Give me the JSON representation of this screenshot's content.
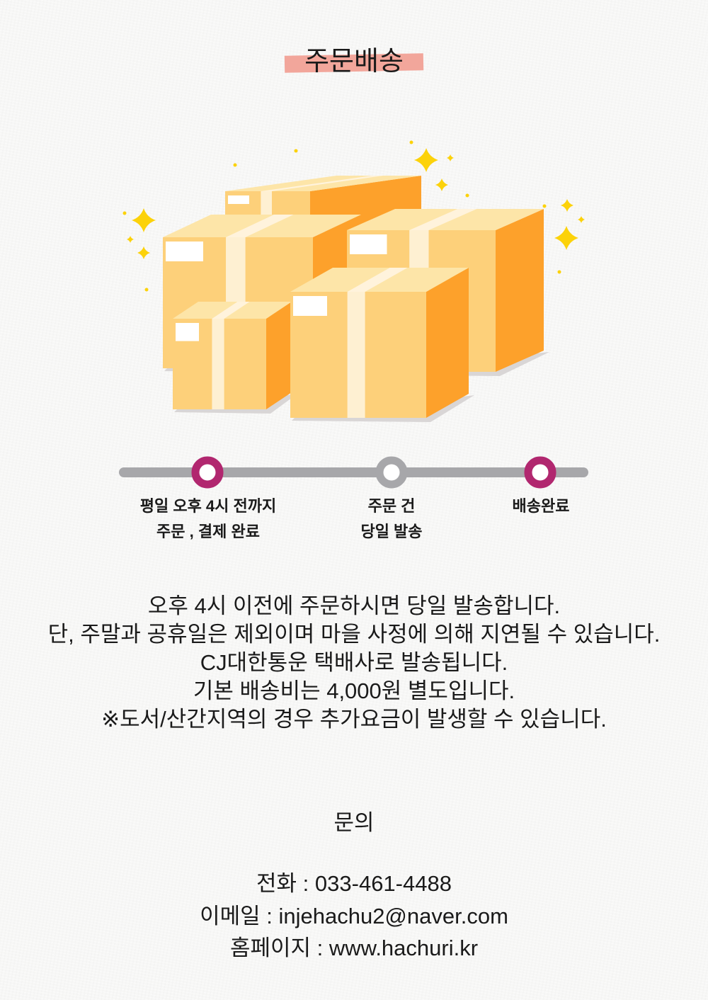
{
  "title": "주문배송",
  "colors": {
    "accent": "#b1276f",
    "track": "#a7a7aa",
    "title_highlight": "#f2a69b",
    "box_front": "#fdd07a",
    "box_side": "#fda12b",
    "box_top": "#fde5a8"
  },
  "timeline": {
    "steps": [
      {
        "line1": "평일 오후 4시 전까지",
        "line2": "주문 , 결제 완료",
        "active": true
      },
      {
        "line1": "주문 건",
        "line2": "당일 발송",
        "active": false
      },
      {
        "line1": "배송완료",
        "line2": "",
        "active": true
      }
    ]
  },
  "notice": [
    "오후 4시 이전에 주문하시면 당일 발송합니다.",
    "단, 주말과 공휴일은 제외이며 마을 사정에 의해 지연될 수 있습니다.",
    "CJ대한통운 택배사로 발송됩니다.",
    "기본 배송비는 4,000원 별도입니다.",
    "※도서/산간지역의 경우 추가요금이 발생할 수 있습니다."
  ],
  "contact": {
    "heading": "문의",
    "phone": "전화 : 033-461-4488",
    "email": "이메일 : injehachu2@naver.com",
    "homepage": "홈페이지 : www.hachuri.kr"
  }
}
